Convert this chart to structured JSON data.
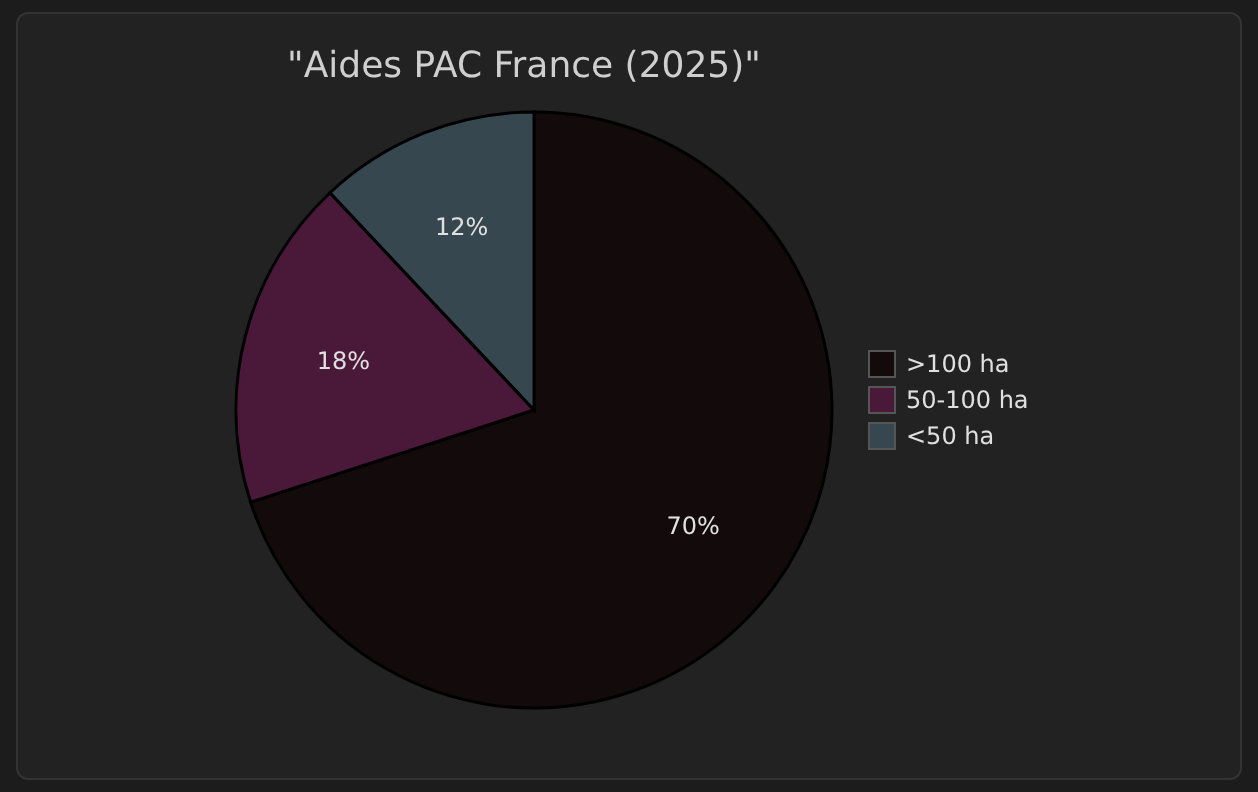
{
  "chart_data": {
    "type": "pie",
    "title": "\"Aides PAC France (2025)\"",
    "categories": [
      ">100 ha",
      "50-100 ha",
      "<50 ha"
    ],
    "values": [
      70,
      18,
      12
    ],
    "colors": [
      "#130a0c",
      "#4a1838",
      "#37474f"
    ],
    "value_labels": [
      "70%",
      "18%",
      "12%"
    ],
    "legend": "right"
  }
}
